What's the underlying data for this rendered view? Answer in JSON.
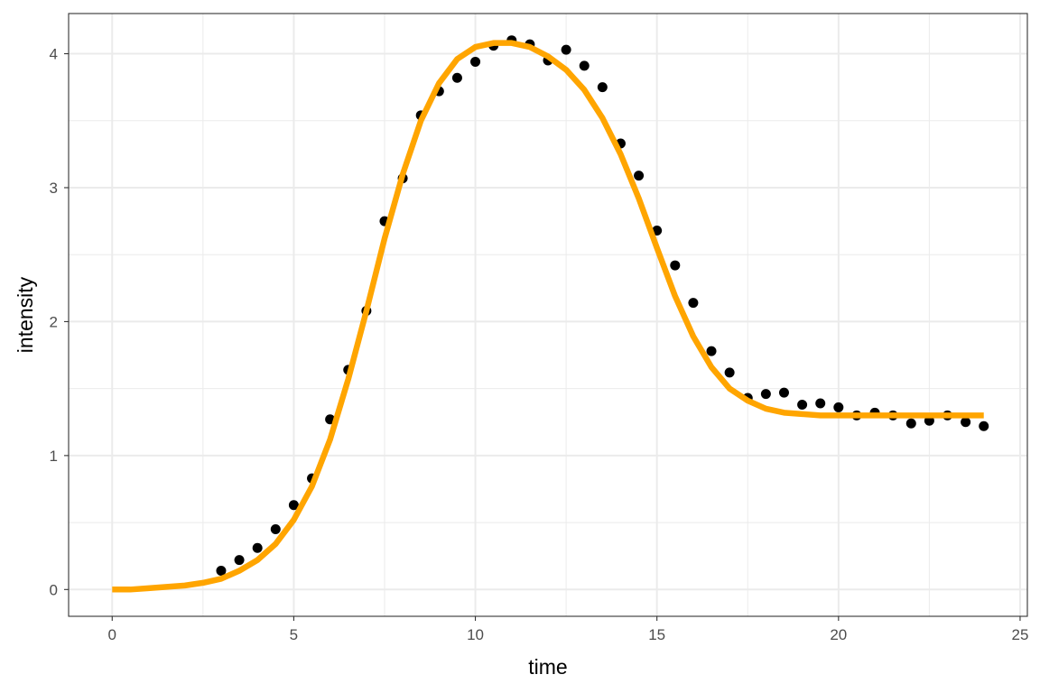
{
  "colors": {
    "background": "#ffffff",
    "grid": "#ebebeb",
    "panel_border": "#333333",
    "points": "#000000",
    "fit_line": "#FFA500",
    "tick_text": "#4d4d4d"
  },
  "chart_data": {
    "type": "scatter",
    "xlabel": "time",
    "ylabel": "intensity",
    "xlim": [
      -1.2,
      25.2
    ],
    "ylim": [
      -0.2,
      4.3
    ],
    "x_ticks": [
      0,
      5,
      10,
      15,
      20,
      25
    ],
    "y_ticks": [
      0,
      1,
      2,
      3,
      4
    ],
    "grid": true,
    "series": [
      {
        "kind": "points",
        "x": [
          3,
          3.5,
          4,
          4.5,
          5,
          5.5,
          6,
          6.5,
          7,
          7.5,
          8,
          8.5,
          9,
          9.5,
          10,
          10.5,
          11,
          11.5,
          12,
          12.5,
          13,
          13.5,
          14,
          14.5,
          15,
          15.5,
          16,
          16.5,
          17,
          17.5,
          18,
          18.5,
          19,
          19.5,
          20,
          20.5,
          21,
          21.5,
          22,
          22.5,
          23,
          23.5,
          24
        ],
        "y": [
          0.14,
          0.22,
          0.31,
          0.45,
          0.63,
          0.83,
          1.27,
          1.64,
          2.08,
          2.75,
          3.07,
          3.54,
          3.72,
          3.82,
          3.94,
          4.06,
          4.1,
          4.07,
          3.95,
          4.03,
          3.91,
          3.75,
          3.33,
          3.09,
          2.68,
          2.42,
          2.14,
          1.78,
          1.62,
          1.43,
          1.46,
          1.47,
          1.38,
          1.39,
          1.36,
          1.3,
          1.32,
          1.3,
          1.24,
          1.26,
          1.3,
          1.25,
          1.22
        ]
      },
      {
        "kind": "line",
        "x": [
          0,
          0.5,
          1,
          1.5,
          2,
          2.5,
          3,
          3.5,
          4,
          4.5,
          5,
          5.5,
          6,
          6.5,
          7,
          7.5,
          8,
          8.5,
          9,
          9.5,
          10,
          10.5,
          11,
          11.5,
          12,
          12.5,
          13,
          13.5,
          14,
          14.5,
          15,
          15.5,
          16,
          16.5,
          17,
          17.5,
          18,
          18.5,
          19,
          19.5,
          20,
          20.5,
          21,
          21.5,
          22,
          22.5,
          23,
          23.5,
          24
        ],
        "y": [
          0.0,
          0.0,
          0.01,
          0.02,
          0.03,
          0.05,
          0.08,
          0.14,
          0.22,
          0.34,
          0.52,
          0.77,
          1.12,
          1.57,
          2.08,
          2.62,
          3.1,
          3.5,
          3.78,
          3.96,
          4.05,
          4.08,
          4.08,
          4.05,
          3.98,
          3.88,
          3.73,
          3.52,
          3.25,
          2.92,
          2.55,
          2.19,
          1.89,
          1.66,
          1.5,
          1.41,
          1.35,
          1.32,
          1.31,
          1.3,
          1.3,
          1.3,
          1.3,
          1.3,
          1.3,
          1.3,
          1.3,
          1.3,
          1.3
        ]
      }
    ]
  }
}
